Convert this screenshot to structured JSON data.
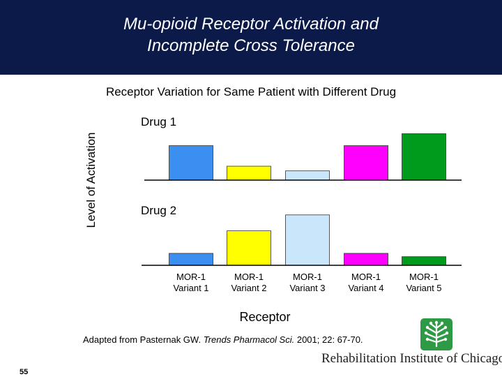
{
  "slide": {
    "title_line1": "Mu-opioid Receptor Activation and",
    "title_line2": "Incomplete Cross Tolerance",
    "slide_number": "55"
  },
  "chart_data": {
    "type": "bar",
    "subtitle": "Receptor Variation for Same Patient with Different Drug",
    "ylabel": "Level of Activation",
    "xlabel": "Receptor",
    "categories": [
      "MOR-1 Variant 1",
      "MOR-1 Variant 2",
      "MOR-1 Variant 3",
      "MOR-1 Variant 4",
      "MOR-1 Variant 5"
    ],
    "category_lines": [
      [
        "MOR-1",
        "Variant 1"
      ],
      [
        "MOR-1",
        "Variant 2"
      ],
      [
        "MOR-1",
        "Variant 3"
      ],
      [
        "MOR-1",
        "Variant 4"
      ],
      [
        "MOR-1",
        "Variant 5"
      ]
    ],
    "bar_colors": [
      "#3a8ff0",
      "#ffff00",
      "#c9e6fb",
      "#ff00ff",
      "#009a1c"
    ],
    "series": [
      {
        "name": "Drug 1",
        "values": [
          52,
          21,
          14,
          52,
          70
        ]
      },
      {
        "name": "Drug 2",
        "values": [
          18,
          52,
          76,
          18,
          13
        ]
      }
    ],
    "ylim": [
      0,
      80
    ],
    "grid": false
  },
  "credits": {
    "citation_before": "Adapted from Pasternak GW. ",
    "citation_journal": "Trends Pharmacol Sci.",
    "citation_after": " 2001; 22: 67-70.",
    "logo_text": "Rehabilitation Institute of Chicago"
  }
}
